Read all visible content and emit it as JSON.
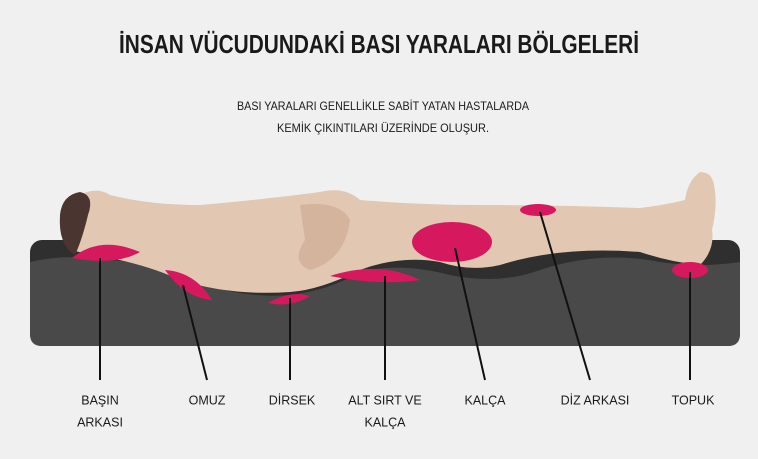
{
  "header": {
    "title": "İNSAN VÜCUDUNDAKİ BASI YARALARI BÖLGELERİ",
    "subtitle": [
      "BASI YARALARI GENELLİKLE SABİT YATAN HASTALARDA",
      "KEMİK ÇIKINTILARI ÜZERİNDE OLUŞUR."
    ]
  },
  "labels": [
    {
      "lines": [
        "BAŞIN",
        "ARKASI"
      ]
    },
    {
      "lines": [
        "OMUZ"
      ]
    },
    {
      "lines": [
        "DİRSEK"
      ]
    },
    {
      "lines": [
        "ALT SIRT VE",
        "KALÇA"
      ]
    },
    {
      "lines": [
        "KALÇA"
      ]
    },
    {
      "lines": [
        "DİZ ARKASI"
      ]
    },
    {
      "lines": [
        "TOPUK"
      ]
    }
  ]
}
